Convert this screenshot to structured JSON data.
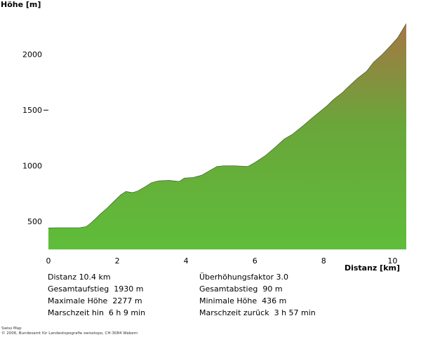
{
  "chart_data": {
    "type": "area",
    "ylabel": "Höhe [m]",
    "xlabel": "Distanz [km]",
    "xlim": [
      0,
      10.4
    ],
    "ylim": [
      250,
      2300
    ],
    "x_ticks": [
      {
        "value": 0,
        "label": "0"
      },
      {
        "value": 2,
        "label": "2"
      },
      {
        "value": 4,
        "label": "4"
      },
      {
        "value": 6,
        "label": "6"
      },
      {
        "value": 8,
        "label": "8"
      },
      {
        "value": 10,
        "label": "10"
      }
    ],
    "y_ticks": [
      {
        "value": 500,
        "label": "500"
      },
      {
        "value": 1000,
        "label": "1000"
      },
      {
        "value": 1500,
        "label": "1500"
      },
      {
        "value": 2000,
        "label": "2000"
      }
    ],
    "colors": {
      "low": "#5fbd3a",
      "high": "#a67645"
    },
    "series": [
      {
        "x": [
          0,
          0.3,
          0.6,
          0.9,
          1.1,
          1.2,
          1.35,
          1.5,
          1.7,
          1.9,
          2.1,
          2.25,
          2.45,
          2.6,
          2.8,
          3.0,
          3.2,
          3.5,
          3.8,
          3.95,
          4.2,
          4.45,
          4.7,
          4.9,
          5.1,
          5.4,
          5.8,
          6.0,
          6.3,
          6.6,
          6.85,
          7.1,
          7.4,
          7.7,
          7.9,
          8.1,
          8.3,
          8.55,
          8.75,
          9.0,
          9.25,
          9.45,
          9.7,
          9.95,
          10.15,
          10.4
        ],
        "y": [
          443,
          445,
          445,
          445,
          455,
          478,
          520,
          565,
          620,
          680,
          740,
          770,
          760,
          775,
          810,
          850,
          865,
          870,
          860,
          890,
          895,
          915,
          960,
          995,
          1000,
          1000,
          995,
          1030,
          1090,
          1170,
          1240,
          1285,
          1360,
          1440,
          1490,
          1540,
          1600,
          1660,
          1720,
          1790,
          1850,
          1930,
          2000,
          2080,
          2150,
          2277
        ]
      }
    ]
  },
  "stats": {
    "left": [
      {
        "label": "Distanz",
        "value": "10.4 km"
      },
      {
        "label": "Gesamtaufstieg",
        "value": "1930 m"
      },
      {
        "label": "Maximale Höhe",
        "value": "2277 m"
      },
      {
        "label": "Marschzeit hin",
        "value": "6 h 9 min"
      }
    ],
    "right": [
      {
        "label": "Überhöhungsfaktor",
        "value": "3.0"
      },
      {
        "label": "Gesamtabstieg",
        "value": "90 m"
      },
      {
        "label": "Minimale Höhe",
        "value": "436 m"
      },
      {
        "label": "Marschzeit zurück",
        "value": "3 h 57 min"
      }
    ]
  },
  "credit": {
    "line1": "Swiss Map",
    "line2": "© 2006, Bundesamt für Landestopografie swisstopo, CH-3084 Wabern"
  }
}
